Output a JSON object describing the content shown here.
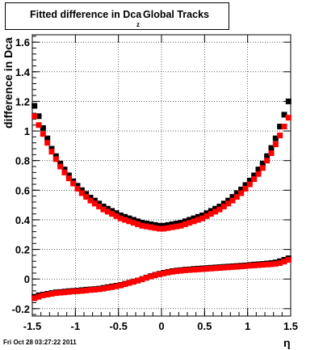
{
  "title": {
    "main": "Fitted difference in Dca",
    "subscript": "z",
    "tail": "Global Tracks"
  },
  "footer": "Fri Oct 28 03:27:22 2011",
  "chart_data": {
    "type": "scatter",
    "xlabel": "η",
    "ylabel": "difference in Dca",
    "ylabel_subscript": "z",
    "xlim": [
      -1.5,
      1.5
    ],
    "ylim": [
      -0.25,
      1.65
    ],
    "x_ticks": [
      -1.5,
      -1,
      -0.5,
      0,
      0.5,
      1,
      1.5
    ],
    "x_tick_labels": [
      "-1.5",
      "-1",
      "-0.5",
      "0",
      "0.5",
      "1",
      "1.5"
    ],
    "y_ticks": [
      -0.2,
      0,
      0.2,
      0.4,
      0.6,
      0.8,
      1,
      1.2,
      1.4,
      1.6
    ],
    "y_tick_labels": [
      "-0.2",
      "0",
      "0.2",
      "0.4",
      "0.6",
      "0.8",
      "1",
      "1.2",
      "1.4",
      "1.6"
    ],
    "grid": true,
    "x": [
      -1.475,
      -1.425,
      -1.375,
      -1.325,
      -1.275,
      -1.225,
      -1.175,
      -1.125,
      -1.075,
      -1.025,
      -0.975,
      -0.925,
      -0.875,
      -0.825,
      -0.775,
      -0.725,
      -0.675,
      -0.625,
      -0.575,
      -0.525,
      -0.475,
      -0.425,
      -0.375,
      -0.325,
      -0.275,
      -0.225,
      -0.175,
      -0.125,
      -0.075,
      -0.025,
      0.025,
      0.075,
      0.125,
      0.175,
      0.225,
      0.275,
      0.325,
      0.375,
      0.425,
      0.475,
      0.525,
      0.575,
      0.625,
      0.675,
      0.725,
      0.775,
      0.825,
      0.875,
      0.925,
      0.975,
      1.025,
      1.075,
      1.125,
      1.175,
      1.225,
      1.275,
      1.325,
      1.375,
      1.425,
      1.475
    ],
    "series": [
      {
        "color": "#000000",
        "values": [
          1.17,
          1.1,
          1.02,
          0.95,
          0.88,
          0.83,
          0.78,
          0.74,
          0.7,
          0.66,
          0.63,
          0.6,
          0.575,
          0.55,
          0.53,
          0.51,
          0.49,
          0.475,
          0.46,
          0.445,
          0.43,
          0.42,
          0.41,
          0.4,
          0.39,
          0.38,
          0.375,
          0.37,
          0.365,
          0.36,
          0.36,
          0.365,
          0.37,
          0.375,
          0.38,
          0.39,
          0.4,
          0.41,
          0.42,
          0.43,
          0.445,
          0.46,
          0.475,
          0.49,
          0.51,
          0.53,
          0.555,
          0.58,
          0.605,
          0.635,
          0.665,
          0.7,
          0.74,
          0.78,
          0.83,
          0.885,
          0.95,
          1.03,
          1.11,
          1.2
        ]
      },
      {
        "color": "#ff0000",
        "values": [
          1.1,
          1.04,
          0.98,
          0.92,
          0.86,
          0.81,
          0.76,
          0.72,
          0.68,
          0.645,
          0.61,
          0.58,
          0.555,
          0.53,
          0.51,
          0.49,
          0.47,
          0.455,
          0.44,
          0.425,
          0.41,
          0.4,
          0.39,
          0.38,
          0.37,
          0.36,
          0.355,
          0.35,
          0.345,
          0.34,
          0.34,
          0.345,
          0.35,
          0.355,
          0.36,
          0.37,
          0.38,
          0.39,
          0.4,
          0.41,
          0.425,
          0.44,
          0.455,
          0.47,
          0.49,
          0.51,
          0.53,
          0.555,
          0.58,
          0.61,
          0.64,
          0.675,
          0.71,
          0.75,
          0.8,
          0.85,
          0.91,
          0.97,
          1.03,
          1.09
        ]
      },
      {
        "color": "#000000",
        "values": [
          -0.12,
          -0.11,
          -0.105,
          -0.1,
          -0.095,
          -0.09,
          -0.088,
          -0.085,
          -0.082,
          -0.08,
          -0.078,
          -0.075,
          -0.072,
          -0.07,
          -0.068,
          -0.065,
          -0.06,
          -0.055,
          -0.05,
          -0.045,
          -0.04,
          -0.032,
          -0.025,
          -0.017,
          -0.01,
          0.0,
          0.01,
          0.02,
          0.028,
          0.035,
          0.042,
          0.048,
          0.053,
          0.057,
          0.06,
          0.063,
          0.065,
          0.068,
          0.07,
          0.072,
          0.074,
          0.076,
          0.078,
          0.08,
          0.082,
          0.084,
          0.086,
          0.088,
          0.09,
          0.092,
          0.095,
          0.098,
          0.1,
          0.102,
          0.105,
          0.108,
          0.112,
          0.12,
          0.13,
          0.14
        ]
      },
      {
        "color": "#ff0000",
        "values": [
          -0.13,
          -0.12,
          -0.11,
          -0.105,
          -0.1,
          -0.095,
          -0.092,
          -0.09,
          -0.087,
          -0.084,
          -0.082,
          -0.08,
          -0.077,
          -0.074,
          -0.072,
          -0.069,
          -0.065,
          -0.06,
          -0.055,
          -0.049,
          -0.043,
          -0.035,
          -0.027,
          -0.019,
          -0.011,
          -0.002,
          0.008,
          0.017,
          0.025,
          0.032,
          0.038,
          0.044,
          0.049,
          0.053,
          0.056,
          0.059,
          0.061,
          0.063,
          0.065,
          0.067,
          0.069,
          0.071,
          0.073,
          0.075,
          0.077,
          0.079,
          0.081,
          0.083,
          0.085,
          0.087,
          0.09,
          0.092,
          0.094,
          0.096,
          0.098,
          0.1,
          0.103,
          0.108,
          0.118,
          0.13
        ]
      }
    ]
  }
}
